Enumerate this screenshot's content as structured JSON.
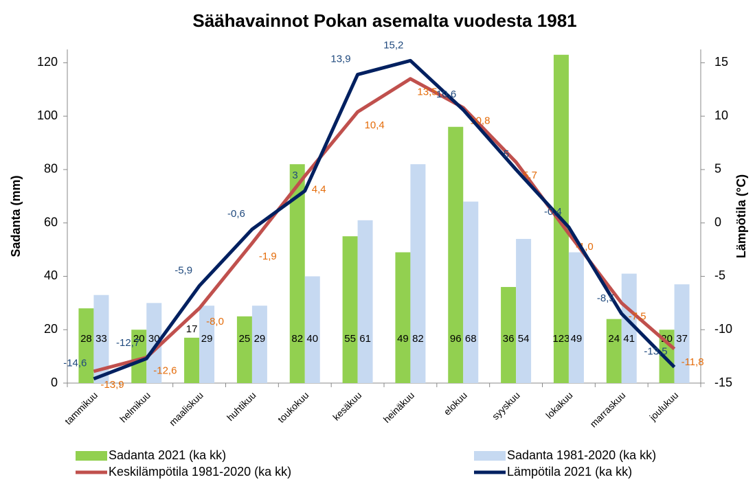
{
  "chart_data": {
    "type": "bar-line",
    "title": "Säähavainnot Pokan asemalta vuodesta 1981",
    "y_label": "Sadanta (mm)",
    "y2_label": "Lämpötila (°C)",
    "categories": [
      "tammikuu",
      "helmikuu",
      "maaliskuu",
      "huhtikuu",
      "toukokuu",
      "kesäkuu",
      "heinäkuu",
      "elokuu",
      "syyskuu",
      "lokakuu",
      "marraskuu",
      "joulukuu"
    ],
    "ylim": [
      0,
      125
    ],
    "yticks": [
      0,
      20,
      40,
      60,
      80,
      100,
      120
    ],
    "y2lim": [
      -15,
      16.25
    ],
    "y2ticks": [
      -15,
      -10,
      -5,
      0,
      5,
      10,
      15
    ],
    "series": [
      {
        "name": "Sadanta 2021 (ka kk)",
        "kind": "bar",
        "color": "#92d050",
        "values": [
          28,
          20,
          17,
          25,
          82,
          55,
          49,
          96,
          36,
          123,
          24,
          20
        ]
      },
      {
        "name": "Sadanta 1981-2020 (ka kk)",
        "kind": "bar",
        "color": "#c6d9f1",
        "values": [
          33,
          30,
          29,
          29,
          40,
          61,
          82,
          68,
          54,
          49,
          41,
          37
        ]
      },
      {
        "name": "Keskilämpötila 1981-2020 (ka kk)",
        "kind": "line",
        "axis": "y2",
        "color": "#c0504d",
        "label_color": "#e46c0a",
        "values": [
          -13.9,
          -12.6,
          -8.0,
          -1.9,
          4.4,
          10.4,
          13.5,
          10.8,
          5.7,
          -1.0,
          -7.5,
          -11.8
        ],
        "value_labels": [
          "-13,9",
          "-12,6",
          "-8,0",
          "-1,9",
          "4,4",
          "10,4",
          "13,5",
          "10,8",
          "5,7",
          "-1,0",
          "-7,5",
          "-11,8"
        ]
      },
      {
        "name": "Lämpötila 2021 (ka kk)",
        "kind": "line",
        "axis": "y2",
        "color": "#002060",
        "label_color": "#1f497d",
        "values": [
          -14.6,
          -12.7,
          -5.9,
          -0.6,
          3,
          13.9,
          15.2,
          10.6,
          5,
          -0.4,
          -8.5,
          -13.5
        ],
        "value_labels": [
          "-14,6",
          "-12,7",
          "-5,9",
          "-0,6",
          "3",
          "13,9",
          "15,2",
          "10,6",
          "5",
          "-0,4",
          "-8,5",
          "-13,5"
        ]
      }
    ]
  }
}
